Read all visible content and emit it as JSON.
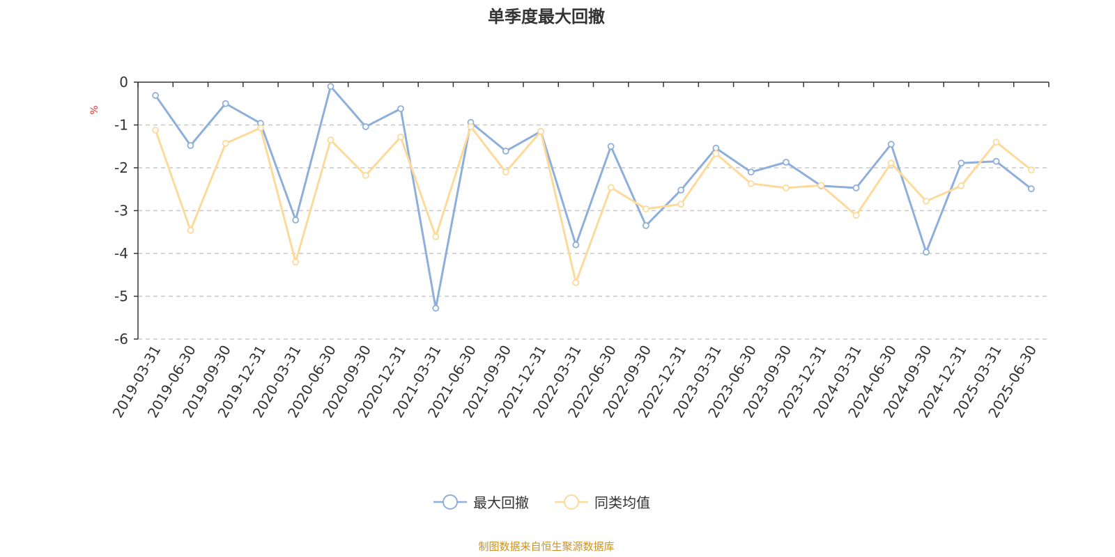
{
  "chart_data": {
    "type": "line",
    "title": "单季度最大回撤",
    "ylabel": "%",
    "ylim": [
      -6,
      0
    ],
    "yticks": [
      0,
      -1,
      -2,
      -3,
      -4,
      -5,
      -6
    ],
    "grid": true,
    "legend_placement": "bottom",
    "categories": [
      "2019-03-31",
      "2019-06-30",
      "2019-09-30",
      "2019-12-31",
      "2020-03-31",
      "2020-06-30",
      "2020-09-30",
      "2020-12-31",
      "2021-03-31",
      "2021-06-30",
      "2021-09-30",
      "2021-12-31",
      "2022-03-31",
      "2022-06-30",
      "2022-09-30",
      "2022-12-31",
      "2023-03-31",
      "2023-06-30",
      "2023-09-30",
      "2023-12-31",
      "2024-03-31",
      "2024-06-30",
      "2024-09-30",
      "2024-12-31",
      "2025-03-31",
      "2025-06-30"
    ],
    "series": [
      {
        "name": "最大回撤",
        "color": "#8eaedb",
        "values": [
          -0.31,
          -1.48,
          -0.5,
          -0.96,
          -3.22,
          -0.1,
          -1.04,
          -0.62,
          -5.28,
          -0.94,
          -1.61,
          -1.15,
          -3.8,
          -1.5,
          -3.35,
          -2.52,
          -1.54,
          -2.1,
          -1.87,
          -2.42,
          -2.47,
          -1.45,
          -3.97,
          -1.89,
          -1.85,
          -2.49
        ]
      },
      {
        "name": "同类均值",
        "color": "#fdd99a",
        "values": [
          -1.12,
          -3.46,
          -1.43,
          -1.07,
          -4.2,
          -1.35,
          -2.18,
          -1.28,
          -3.61,
          -1.04,
          -2.1,
          -1.15,
          -4.68,
          -2.46,
          -2.96,
          -2.85,
          -1.67,
          -2.37,
          -2.47,
          -2.41,
          -3.11,
          -1.89,
          -2.78,
          -2.42,
          -1.4,
          -2.05
        ]
      }
    ]
  },
  "footer": {
    "source": "制图数据来自恒生聚源数据库",
    "source_color": "#c8922a"
  },
  "ylabel_color": "#e8302e"
}
